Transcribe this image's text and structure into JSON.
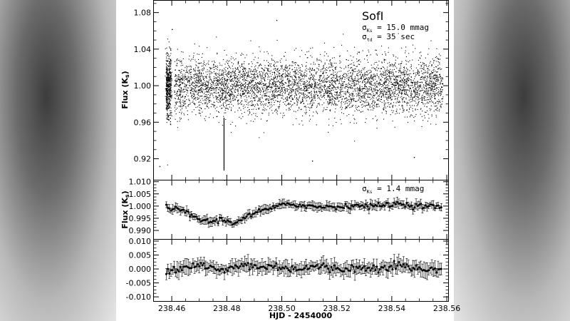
{
  "chart_data": [
    {
      "type": "scatter",
      "panel": "top",
      "instrument_label": "SofI",
      "annotation_lines": [
        "σ_Ks = 15.0 mmag",
        "σ_τd = 35 sec"
      ],
      "ylabel": "Flux (K_s)",
      "ylim": [
        0.897,
        1.093
      ],
      "yticks": [
        0.92,
        0.96,
        1.0,
        1.04,
        1.08
      ],
      "ytick_labels": [
        "0.92",
        "0.96",
        "1.00",
        "1.04",
        "1.08"
      ],
      "xlim": [
        238.4535,
        238.5605
      ],
      "series": [
        {
          "center": 1.0,
          "sigma": 0.015,
          "x_range": [
            238.4575,
            238.5585
          ],
          "gap": [
            238.4599,
            238.4608
          ],
          "outlier_points": [
            [
              238.4555,
              0.912
            ],
            [
              238.46,
              1.062
            ],
            [
              238.479,
              0.897
            ],
            [
              238.498,
              1.072
            ],
            [
              238.511,
              0.918
            ],
            [
              238.548,
              0.922
            ]
          ]
        }
      ]
    },
    {
      "type": "line",
      "panel": "middle",
      "annotation": "σ_Ks = 1.4 mmag",
      "ylabel": "Flux (K_s)",
      "ylim": [
        0.9865,
        1.0105
      ],
      "yticks": [
        0.99,
        0.995,
        1.0,
        1.005,
        1.01
      ],
      "ytick_labels": [
        "0.990",
        "0.995",
        "1.000",
        "1.005",
        "1.010"
      ],
      "xlim": [
        238.4535,
        238.5605
      ],
      "series": [
        {
          "x": [
            238.458,
            238.462,
            238.466,
            238.47,
            238.474,
            238.478,
            238.482,
            238.486,
            238.49,
            238.494,
            238.498,
            238.502,
            238.506,
            238.51,
            238.514,
            238.518,
            238.522,
            238.526,
            238.53,
            238.534,
            238.538,
            238.542,
            238.546,
            238.55,
            238.554,
            238.558
          ],
          "y": [
            0.9995,
            0.9985,
            0.997,
            0.9945,
            0.9935,
            0.9945,
            0.993,
            0.995,
            0.997,
            0.9985,
            0.9995,
            1.001,
            1.0005,
            1.0,
            0.9995,
            1.0,
            0.9995,
            1.0005,
            1.0,
            1.0,
            1.0005,
            1.001,
            1.0005,
            1.0,
            1.0,
            0.9995
          ],
          "err": 0.0015
        }
      ]
    },
    {
      "type": "line",
      "panel": "bottom",
      "ylim": [
        -0.0115,
        0.0105
      ],
      "yticks": [
        -0.01,
        -0.005,
        0.0,
        0.005,
        0.01
      ],
      "ytick_labels": [
        "-0.010",
        "-0.005",
        "0.000",
        "0.005",
        "0.010"
      ],
      "xlabel": "HJD - 2454000",
      "xlim": [
        238.4535,
        238.5605
      ],
      "xticks": [
        238.46,
        238.48,
        238.5,
        238.52,
        238.54,
        238.56
      ],
      "xtick_labels": [
        "238.46",
        "238.48",
        "238.50",
        "238.52",
        "238.54",
        "238.56"
      ],
      "series": [
        {
          "x": [
            238.458,
            238.462,
            238.466,
            238.47,
            238.474,
            238.478,
            238.482,
            238.486,
            238.49,
            238.494,
            238.498,
            238.502,
            238.506,
            238.51,
            238.514,
            238.518,
            238.522,
            238.526,
            238.53,
            238.534,
            238.538,
            238.542,
            238.546,
            238.55,
            238.554,
            238.558
          ],
          "y": [
            -0.0005,
            0.0,
            0.001,
            0.0015,
            0.0005,
            -0.001,
            0.0005,
            0.0015,
            0.001,
            0.0005,
            0.001,
            0.0005,
            0.0,
            0.0005,
            0.001,
            0.0,
            0.0,
            0.0005,
            0.0,
            0.0005,
            0.001,
            0.0015,
            0.0005,
            0.0,
            -0.0005,
            0.0
          ],
          "err": 0.0022
        }
      ]
    }
  ]
}
